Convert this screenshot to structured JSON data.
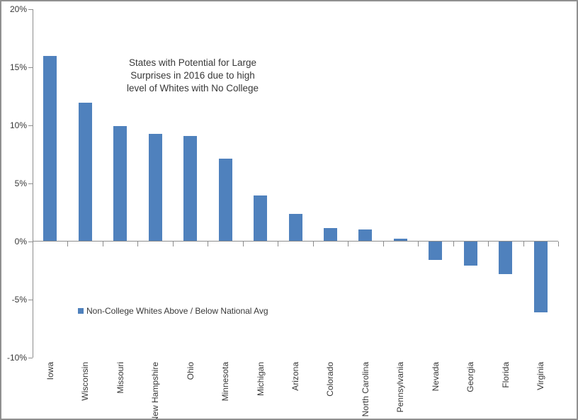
{
  "chart_data": {
    "type": "bar",
    "title": "States with Potential for Large Surprises in 2016 due to high level of Whites with No College",
    "title_lines": [
      "States with Potential for Large",
      "Surprises in 2016 due to high",
      "level of Whites with No College"
    ],
    "legend": {
      "label": "Non-College Whites Above / Below National Avg",
      "marker_color": "#4F81BD",
      "position": "inside-left-middle"
    },
    "categories": [
      "Iowa",
      "Wisconsin",
      "Missouri",
      "New Hampshire",
      "Ohio",
      "Minnesota",
      "Michigan",
      "Arizona",
      "Colorado",
      "North Carolina",
      "Pennsylvania",
      "Nevada",
      "Georgia",
      "Florida",
      "Virginia"
    ],
    "values": [
      15.9,
      11.9,
      9.9,
      9.2,
      9.0,
      7.1,
      3.9,
      2.3,
      1.1,
      1.0,
      0.2,
      -1.6,
      -2.1,
      -2.8,
      -6.1
    ],
    "xlabel": "",
    "ylabel": "",
    "ylim": [
      -10,
      20
    ],
    "y_tick_interval": 5,
    "y_tick_values": [
      20,
      15,
      10,
      5,
      0,
      -5,
      -10
    ],
    "y_tick_labels": [
      "20%",
      "15%",
      "10%",
      "5%",
      "0%",
      "-5%",
      "-10%"
    ],
    "grid": false,
    "bar_color": "#4F81BD",
    "axis_color": "#8C8C8C",
    "text_color": "#383838",
    "background_color": "#FFFFFF",
    "frame_border_color": "#909090"
  }
}
